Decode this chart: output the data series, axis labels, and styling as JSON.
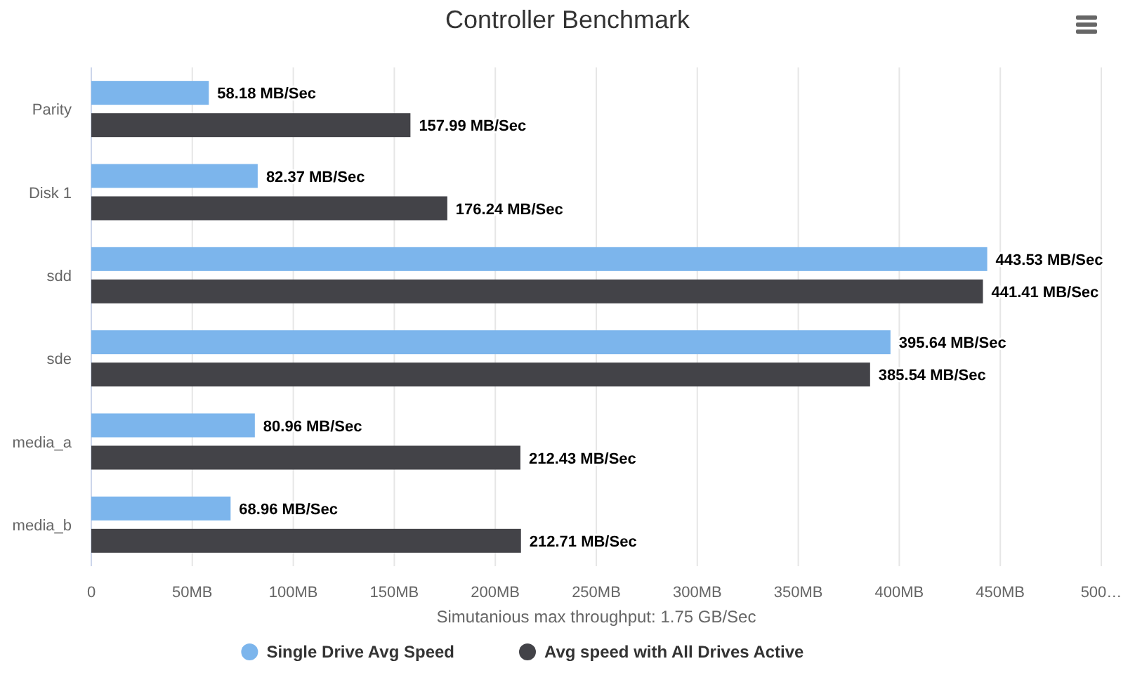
{
  "chart_data": {
    "type": "bar",
    "orientation": "horizontal",
    "title": "Controller Benchmark",
    "xlabel": "Simutanious max throughput: 1.75 GB/Sec",
    "categories": [
      "Parity",
      "Disk 1",
      "sdd",
      "sde",
      "media_a",
      "media_b"
    ],
    "series": [
      {
        "name": "Single Drive Avg Speed",
        "color": "#7cb5ec",
        "values": [
          58.18,
          82.37,
          443.53,
          395.64,
          80.96,
          68.96
        ],
        "value_labels": [
          "58.18 MB/Sec",
          "82.37 MB/Sec",
          "443.53 MB/Sec",
          "395.64 MB/Sec",
          "80.96 MB/Sec",
          "68.96 MB/Sec"
        ]
      },
      {
        "name": "Avg speed with All Drives Active",
        "color": "#434348",
        "values": [
          157.99,
          176.24,
          441.41,
          385.54,
          212.43,
          212.71
        ],
        "value_labels": [
          "157.99 MB/Sec",
          "176.24 MB/Sec",
          "441.41 MB/Sec",
          "385.54 MB/Sec",
          "212.43 MB/Sec",
          "212.71 MB/Sec"
        ]
      }
    ],
    "xlim": [
      0,
      500
    ],
    "xticks": [
      0,
      {
        "value": 50,
        "label": "50MB"
      },
      {
        "value": 100,
        "label": "100MB"
      },
      {
        "value": 150,
        "label": "150MB"
      },
      {
        "value": 200,
        "label": "200MB"
      },
      {
        "value": 250,
        "label": "250MB"
      },
      {
        "value": 300,
        "label": "300MB"
      },
      {
        "value": 350,
        "label": "350MB"
      },
      {
        "value": 400,
        "label": "400MB"
      },
      {
        "value": 450,
        "label": "450MB"
      },
      {
        "value": 500,
        "label": "500…"
      }
    ],
    "grid": "x",
    "legend": "bottom"
  }
}
